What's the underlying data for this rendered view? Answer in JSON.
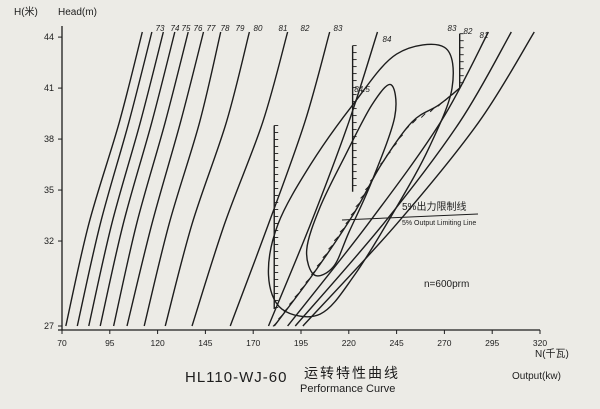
{
  "chart_data": {
    "type": "line",
    "title": "HL110-WJ-60",
    "title_cn": "运转特性曲线",
    "subtitle": "Performance Curve",
    "y_axis": {
      "label_cn": "H(米)",
      "label_en": "Head(m)",
      "ticks": [
        "27",
        "32",
        "35",
        "38",
        "41",
        "44"
      ]
    },
    "x_axis": {
      "label_cn": "N(千瓦)",
      "label_en": "Output(kw)",
      "ticks": [
        "70",
        "95",
        "120",
        "145",
        "170",
        "195",
        "220",
        "245",
        "270",
        "295",
        "320"
      ]
    },
    "grid": false,
    "efficiency_labels": [
      "73",
      "74",
      "75",
      "76",
      "77",
      "78",
      "79",
      "80",
      "81",
      "82",
      "83"
    ],
    "efficiency_lines": [
      {
        "label": "73",
        "points": [
          [
            72,
            27
          ],
          [
            84,
            33
          ],
          [
            100,
            39
          ],
          [
            112,
            44.3
          ]
        ]
      },
      {
        "label": "74",
        "points": [
          [
            78,
            27
          ],
          [
            90,
            33
          ],
          [
            105,
            39
          ],
          [
            117,
            44.3
          ]
        ]
      },
      {
        "label": "75",
        "points": [
          [
            84,
            27
          ],
          [
            96,
            33
          ],
          [
            111,
            39
          ],
          [
            123,
            44.3
          ]
        ]
      },
      {
        "label": "76",
        "points": [
          [
            90,
            27
          ],
          [
            102,
            33
          ],
          [
            117,
            39
          ],
          [
            129,
            44.3
          ]
        ]
      },
      {
        "label": "77",
        "points": [
          [
            97,
            27
          ],
          [
            109,
            33
          ],
          [
            124,
            39
          ],
          [
            136,
            44.3
          ]
        ]
      },
      {
        "label": "78",
        "points": [
          [
            104,
            27
          ],
          [
            117,
            33
          ],
          [
            132,
            39
          ],
          [
            144,
            44.3
          ]
        ]
      },
      {
        "label": "79",
        "points": [
          [
            113,
            27
          ],
          [
            126,
            33
          ],
          [
            142,
            39
          ],
          [
            153,
            44.3
          ]
        ]
      },
      {
        "label": "80",
        "points": [
          [
            124,
            27
          ],
          [
            138,
            33
          ],
          [
            156,
            39
          ],
          [
            168,
            44.3
          ]
        ]
      },
      {
        "label": "81",
        "points": [
          [
            138,
            27
          ],
          [
            155,
            33
          ],
          [
            175,
            39
          ],
          [
            188,
            44.3
          ]
        ]
      },
      {
        "label": "82",
        "points": [
          [
            158,
            27
          ],
          [
            178,
            33
          ],
          [
            197,
            39
          ],
          [
            210,
            44.3
          ]
        ]
      },
      {
        "label": "83",
        "points": [
          [
            178,
            27
          ],
          [
            200,
            33
          ],
          [
            220,
            39
          ],
          [
            235,
            44.3
          ]
        ]
      },
      {
        "label": "83",
        "points": [
          [
            188,
            27
          ],
          [
            230,
            33
          ],
          [
            268,
            39
          ],
          [
            293,
            44.3
          ]
        ]
      },
      {
        "label": "82",
        "points": [
          [
            192,
            27
          ],
          [
            238,
            33
          ],
          [
            278,
            39
          ],
          [
            305,
            44.3
          ]
        ]
      },
      {
        "label": "81",
        "points": [
          [
            196,
            27
          ],
          [
            245,
            33
          ],
          [
            288,
            39
          ],
          [
            317,
            44.3
          ]
        ]
      }
    ],
    "efficiency_islands": [
      {
        "label": "84",
        "points": [
          [
            185,
            28
          ],
          [
            178,
            30
          ],
          [
            183,
            33
          ],
          [
            200,
            36.5
          ],
          [
            222,
            40
          ],
          [
            245,
            43
          ],
          [
            270,
            43.4
          ],
          [
            274,
            41
          ],
          [
            262,
            37.5
          ],
          [
            245,
            34
          ],
          [
            223,
            30
          ],
          [
            205,
            27.7
          ],
          [
            185,
            28
          ]
        ]
      },
      {
        "label": "84.5",
        "points": [
          [
            202,
            30
          ],
          [
            198,
            31.5
          ],
          [
            205,
            34
          ],
          [
            218,
            37
          ],
          [
            232,
            40
          ],
          [
            242,
            41.2
          ],
          [
            244,
            39.3
          ],
          [
            232,
            35.5
          ],
          [
            220,
            32.5
          ],
          [
            212,
            30.5
          ],
          [
            202,
            30
          ]
        ]
      }
    ],
    "output_limit_line": {
      "label_cn": "5%出力限制线",
      "label_en": "5% Output Limiting Line",
      "points": [
        [
          181,
          27
        ],
        [
          201,
          30
        ],
        [
          222,
          33.5
        ],
        [
          237,
          36.5
        ],
        [
          253,
          39
        ],
        [
          267,
          40
        ],
        [
          278,
          41
        ]
      ]
    },
    "vertical_lines": [
      {
        "x": 181,
        "y_from": 28,
        "y_to": 38.8
      },
      {
        "x": 222,
        "y_from": 34.9,
        "y_to": 43.5
      },
      {
        "x": 278,
        "y_from": 41,
        "y_to": 44.2
      }
    ],
    "annotation": "n=600prm",
    "ylim": [
      27,
      44.3
    ],
    "xlim": [
      70,
      320
    ]
  }
}
